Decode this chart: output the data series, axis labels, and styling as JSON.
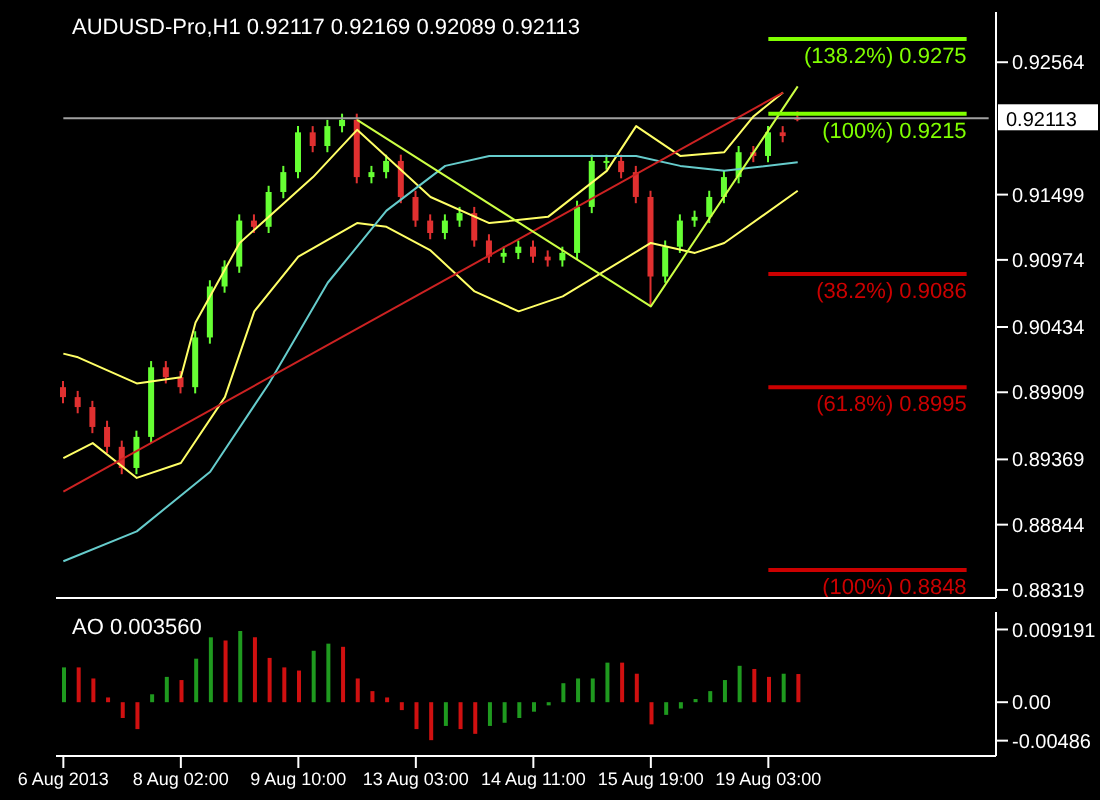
{
  "chart_data": [
    {
      "type": "candlestick",
      "title": "AUDUSD-Pro,H1 0.92117 0.92169 0.92089 0.92113",
      "categories": [
        null,
        null,
        null,
        null,
        null,
        null,
        null,
        null,
        null,
        null,
        null,
        null,
        null,
        null,
        null,
        null,
        null,
        null,
        null,
        null,
        null,
        null,
        null,
        null,
        null,
        null,
        null,
        null,
        null,
        null,
        null,
        null,
        null,
        null,
        null,
        null,
        null,
        null,
        null,
        null,
        null,
        null,
        null,
        null,
        null,
        null,
        null,
        null,
        null,
        null,
        null,
        null,
        null,
        null,
        null,
        null,
        null,
        null,
        null,
        null,
        null,
        null,
        null,
        null
      ],
      "ohlc": [
        [
          0.8995,
          0.9,
          0.8982,
          0.8987
        ],
        [
          0.8987,
          0.8992,
          0.8974,
          0.8979
        ],
        [
          0.8979,
          0.8984,
          0.8958,
          0.8963
        ],
        [
          0.8963,
          0.8968,
          0.8942,
          0.8947
        ],
        [
          0.8947,
          0.8952,
          0.8925,
          0.893
        ],
        [
          0.893,
          0.896,
          0.8925,
          0.8955
        ],
        [
          0.8955,
          0.9016,
          0.895,
          0.9011
        ],
        [
          0.9011,
          0.9016,
          0.8998,
          0.9003
        ],
        [
          0.9003,
          0.9008,
          0.899,
          0.8995
        ],
        [
          0.8995,
          0.904,
          0.899,
          0.9035
        ],
        [
          0.9035,
          0.9081,
          0.903,
          0.9076
        ],
        [
          0.9076,
          0.9097,
          0.9071,
          0.9092
        ],
        [
          0.9092,
          0.9134,
          0.9087,
          0.9129
        ],
        [
          0.9129,
          0.9134,
          0.9119,
          0.9124
        ],
        [
          0.9124,
          0.9157,
          0.9119,
          0.9152
        ],
        [
          0.9152,
          0.9173,
          0.9147,
          0.9168
        ],
        [
          0.9168,
          0.9205,
          0.9163,
          0.92
        ],
        [
          0.92,
          0.9205,
          0.9184,
          0.9189
        ],
        [
          0.9189,
          0.921,
          0.9184,
          0.9205
        ],
        [
          0.9205,
          0.9215,
          0.92,
          0.921
        ],
        [
          0.921,
          0.9215,
          0.9159,
          0.9164
        ],
        [
          0.9164,
          0.9173,
          0.9159,
          0.9168
        ],
        [
          0.9168,
          0.9182,
          0.9163,
          0.9177
        ],
        [
          0.9177,
          0.9182,
          0.9143,
          0.9148
        ],
        [
          0.9148,
          0.9153,
          0.9124,
          0.9129
        ],
        [
          0.9129,
          0.9134,
          0.9114,
          0.9119
        ],
        [
          0.9119,
          0.9134,
          0.9114,
          0.9129
        ],
        [
          0.9129,
          0.914,
          0.9124,
          0.9135
        ],
        [
          0.9135,
          0.914,
          0.9108,
          0.9113
        ],
        [
          0.9113,
          0.9118,
          0.9095,
          0.91
        ],
        [
          0.91,
          0.9108,
          0.9095,
          0.9103
        ],
        [
          0.9103,
          0.9113,
          0.9098,
          0.9108
        ],
        [
          0.9108,
          0.9113,
          0.9095,
          0.91
        ],
        [
          0.91,
          0.9105,
          0.9092,
          0.9097
        ],
        [
          0.9097,
          0.9108,
          0.9092,
          0.9103
        ],
        [
          0.9103,
          0.9145,
          0.9098,
          0.914
        ],
        [
          0.914,
          0.9182,
          0.9135,
          0.9177
        ],
        [
          0.9177,
          0.9182,
          0.917,
          0.9177
        ],
        [
          0.9177,
          0.9182,
          0.9163,
          0.9168
        ],
        [
          0.9168,
          0.9173,
          0.9143,
          0.9148
        ],
        [
          0.9148,
          0.9153,
          0.906,
          0.9084
        ],
        [
          0.9084,
          0.9113,
          0.9079,
          0.9108
        ],
        [
          0.9108,
          0.9134,
          0.9103,
          0.9129
        ],
        [
          0.9129,
          0.9137,
          0.9124,
          0.9132
        ],
        [
          0.9132,
          0.9153,
          0.9127,
          0.9148
        ],
        [
          0.9148,
          0.9169,
          0.9143,
          0.9164
        ],
        [
          0.9164,
          0.9189,
          0.9159,
          0.9184
        ],
        [
          0.9184,
          0.9189,
          0.9176,
          0.9181
        ],
        [
          0.9181,
          0.9205,
          0.9176,
          0.92
        ],
        [
          0.92,
          0.9205,
          0.9192,
          0.9197
        ],
        [
          0.92117,
          0.92169,
          0.92089,
          0.92113
        ],
        null,
        null,
        null,
        null,
        null,
        null,
        null,
        null,
        null,
        null,
        null,
        null,
        null
      ],
      "colors": [
        "#e03030",
        "#e03030",
        "#e03030",
        "#e03030",
        "#e03030",
        "#66ff33",
        "#66ff33",
        "#e03030",
        "#e03030",
        "#66ff33",
        "#66ff33",
        "#66ff33",
        "#66ff33",
        "#e03030",
        "#66ff33",
        "#66ff33",
        "#66ff33",
        "#e03030",
        "#66ff33",
        "#66ff33",
        "#e03030",
        "#66ff33",
        "#66ff33",
        "#e03030",
        "#e03030",
        "#e03030",
        "#66ff33",
        "#66ff33",
        "#e03030",
        "#e03030",
        "#66ff33",
        "#66ff33",
        "#e03030",
        "#e03030",
        "#66ff33",
        "#66ff33",
        "#66ff33",
        "#66ff33",
        "#e03030",
        "#e03030",
        "#e03030",
        "#66ff33",
        "#66ff33",
        "#66ff33",
        "#66ff33",
        "#66ff33",
        "#66ff33",
        "#e03030",
        "#66ff33",
        "#e03030",
        "#e03030",
        null,
        null,
        null,
        null,
        null,
        null,
        null,
        null,
        null,
        null,
        null,
        null,
        null
      ],
      "series": [
        {
          "type": "line",
          "color": "#a0a0a0",
          "values": [
            0.92113,
            null,
            null,
            null,
            null,
            null,
            null,
            null,
            null,
            null,
            null,
            null,
            null,
            null,
            null,
            null,
            null,
            null,
            null,
            null,
            null,
            null,
            null,
            null,
            null,
            null,
            null,
            null,
            null,
            null,
            null,
            null,
            null,
            null,
            null,
            null,
            null,
            null,
            null,
            null,
            null,
            null,
            null,
            null,
            null,
            null,
            null,
            null,
            null,
            null,
            null,
            null,
            null,
            null,
            null,
            null,
            null,
            null,
            null,
            null,
            null,
            null,
            null,
            0.92113
          ]
        },
        {
          "type": "line",
          "color": "#ffff66",
          "values": [
            0.9022,
            0.9019,
            null,
            null,
            null,
            0.8998,
            null,
            null,
            0.9003,
            0.9047,
            null,
            null,
            0.9111,
            null,
            null,
            null,
            null,
            0.9164,
            null,
            null,
            0.9202,
            null,
            null,
            null,
            null,
            0.9148,
            null,
            null,
            null,
            0.9127,
            null,
            null,
            null,
            0.9132,
            null,
            null,
            null,
            0.9169,
            null,
            0.9205,
            null,
            null,
            0.9181,
            null,
            null,
            0.9184,
            null,
            0.9213,
            null,
            0.9232,
            null,
            null,
            null,
            null,
            null,
            null,
            null,
            null,
            null,
            null,
            null,
            null,
            null,
            null
          ]
        },
        {
          "type": "line",
          "color": "#ffff66",
          "values": [
            0.8938,
            null,
            0.895,
            null,
            null,
            0.8922,
            null,
            null,
            0.8934,
            null,
            null,
            0.8987,
            null,
            0.9056,
            null,
            null,
            0.91,
            null,
            null,
            null,
            0.9127,
            null,
            0.9124,
            null,
            null,
            0.9105,
            null,
            null,
            0.9072,
            null,
            null,
            0.9056,
            null,
            null,
            0.9068,
            null,
            null,
            null,
            null,
            null,
            0.9111,
            null,
            null,
            0.9103,
            null,
            0.9111,
            null,
            null,
            null,
            null,
            0.9153,
            null,
            null,
            null,
            null,
            null,
            null,
            null,
            null,
            null,
            null,
            null,
            null,
            null
          ]
        },
        {
          "type": "line",
          "color": "#66cccc",
          "values": [
            0.8855,
            null,
            null,
            null,
            null,
            0.8879,
            null,
            null,
            null,
            null,
            0.8927,
            null,
            null,
            null,
            0.8998,
            null,
            null,
            null,
            0.9079,
            null,
            null,
            null,
            0.9137,
            null,
            null,
            null,
            0.9173,
            null,
            null,
            0.9181,
            null,
            null,
            null,
            null,
            0.9181,
            null,
            null,
            null,
            null,
            0.9181,
            null,
            null,
            0.9173,
            null,
            null,
            0.9169,
            null,
            null,
            null,
            null,
            0.9176,
            null,
            null,
            null,
            null,
            null,
            null,
            null,
            null,
            null,
            null,
            null,
            null,
            null
          ]
        },
        {
          "type": "line",
          "color": "#cc2222",
          "values": [
            0.8911,
            null,
            null,
            null,
            null,
            null,
            null,
            null,
            null,
            null,
            null,
            null,
            null,
            null,
            null,
            null,
            null,
            null,
            null,
            null,
            null,
            null,
            null,
            null,
            null,
            null,
            null,
            null,
            null,
            null,
            null,
            null,
            null,
            null,
            null,
            null,
            null,
            null,
            null,
            null,
            null,
            null,
            null,
            null,
            null,
            null,
            null,
            null,
            null,
            0.9232,
            null,
            null,
            null,
            null,
            null,
            null,
            null,
            null,
            null,
            null,
            null,
            null,
            null,
            null
          ]
        },
        {
          "type": "line",
          "color": "#ccff44",
          "values": [
            null,
            null,
            null,
            null,
            null,
            null,
            null,
            null,
            null,
            null,
            null,
            null,
            null,
            null,
            null,
            null,
            null,
            null,
            null,
            null,
            0.921,
            null,
            null,
            null,
            null,
            null,
            null,
            null,
            null,
            null,
            null,
            null,
            null,
            null,
            null,
            null,
            null,
            null,
            null,
            null,
            0.906,
            null,
            null,
            null,
            null,
            null,
            null,
            null,
            null,
            null,
            0.9237,
            null,
            null,
            null,
            null,
            null,
            null,
            null,
            null,
            null,
            null,
            null,
            null,
            null
          ]
        }
      ],
      "ref_lines": [
        {
          "axis": "y",
          "value": 0.9275,
          "label": "(138.2%) 0.9275",
          "color": "#80ff00"
        },
        {
          "axis": "y",
          "value": 0.9215,
          "label": "(100%) 0.9215",
          "color": "#80ff00"
        },
        {
          "axis": "y",
          "value": 0.9086,
          "label": "(38.2%) 0.9086",
          "color": "#cc0000"
        },
        {
          "axis": "y",
          "value": 0.8995,
          "label": "(61.8%) 0.8995",
          "color": "#cc0000"
        },
        {
          "axis": "y",
          "value": 0.8848,
          "label": "(100%) 0.8848",
          "color": "#cc0000"
        }
      ],
      "annotations": [
        "0.92113"
      ],
      "ylim": [
        0.88254,
        0.92968
      ],
      "yticks": [
        0.92564,
        0.91499,
        0.90974,
        0.90434,
        0.89909,
        0.89369,
        0.88844,
        0.88319
      ],
      "tick_labels": "y"
    },
    {
      "type": "bar",
      "title": "AO 0.003560",
      "categories": [
        "6 Aug 2013",
        null,
        null,
        null,
        null,
        null,
        null,
        null,
        "8 Aug 02:00",
        null,
        null,
        null,
        null,
        null,
        null,
        null,
        "9 Aug 10:00",
        null,
        null,
        null,
        null,
        null,
        null,
        null,
        "13 Aug 03:00",
        null,
        null,
        null,
        null,
        null,
        null,
        null,
        "14 Aug 11:00",
        null,
        null,
        null,
        null,
        null,
        null,
        null,
        "15 Aug 19:00",
        null,
        null,
        null,
        null,
        null,
        null,
        null,
        "19 Aug 03:00",
        null,
        null,
        null,
        null,
        null,
        null,
        null,
        null,
        null,
        null,
        null,
        null,
        null,
        null,
        null
      ],
      "values": [
        0.0044,
        0.0044,
        0.003,
        0.0006,
        -0.002,
        -0.0034,
        0.001,
        0.0032,
        0.0028,
        0.0055,
        0.0082,
        0.0078,
        0.009,
        0.0082,
        0.0056,
        0.0044,
        0.004,
        0.0065,
        0.0074,
        0.007,
        0.003,
        0.0014,
        0.0006,
        -0.001,
        -0.0034,
        -0.0048,
        -0.003,
        -0.0034,
        -0.004,
        -0.003,
        -0.0026,
        -0.002,
        -0.0012,
        -0.0004,
        0.0024,
        0.003,
        0.003,
        0.005,
        0.005,
        0.0036,
        -0.0028,
        -0.0016,
        -0.0008,
        0.0004,
        0.0014,
        0.0028,
        0.0046,
        0.0042,
        0.0032,
        0.0036,
        0.00356,
        null,
        null,
        null,
        null,
        null,
        null,
        null,
        null,
        null,
        null,
        null,
        null,
        null
      ],
      "colors": [
        "#1f9a1f",
        "#d01010",
        "#d01010",
        "#d01010",
        "#d01010",
        "#d01010",
        "#1f9a1f",
        "#1f9a1f",
        "#d01010",
        "#1f9a1f",
        "#1f9a1f",
        "#d01010",
        "#1f9a1f",
        "#d01010",
        "#d01010",
        "#d01010",
        "#d01010",
        "#1f9a1f",
        "#1f9a1f",
        "#d01010",
        "#d01010",
        "#d01010",
        "#d01010",
        "#d01010",
        "#d01010",
        "#d01010",
        "#1f9a1f",
        "#d01010",
        "#d01010",
        "#1f9a1f",
        "#1f9a1f",
        "#1f9a1f",
        "#1f9a1f",
        "#1f9a1f",
        "#1f9a1f",
        "#1f9a1f",
        "#1f9a1f",
        "#1f9a1f",
        "#d01010",
        "#d01010",
        "#d01010",
        "#1f9a1f",
        "#1f9a1f",
        "#1f9a1f",
        "#1f9a1f",
        "#1f9a1f",
        "#1f9a1f",
        "#d01010",
        "#d01010",
        "#1f9a1f",
        "#d01010",
        null,
        null,
        null,
        null,
        null,
        null,
        null,
        null,
        null,
        null,
        null,
        null,
        null
      ],
      "ylim": [
        -0.0068,
        0.0114
      ],
      "yticks": [
        0.009191,
        {
          "value": 0,
          "label": "0.00"
        },
        -0.00486
      ]
    }
  ]
}
